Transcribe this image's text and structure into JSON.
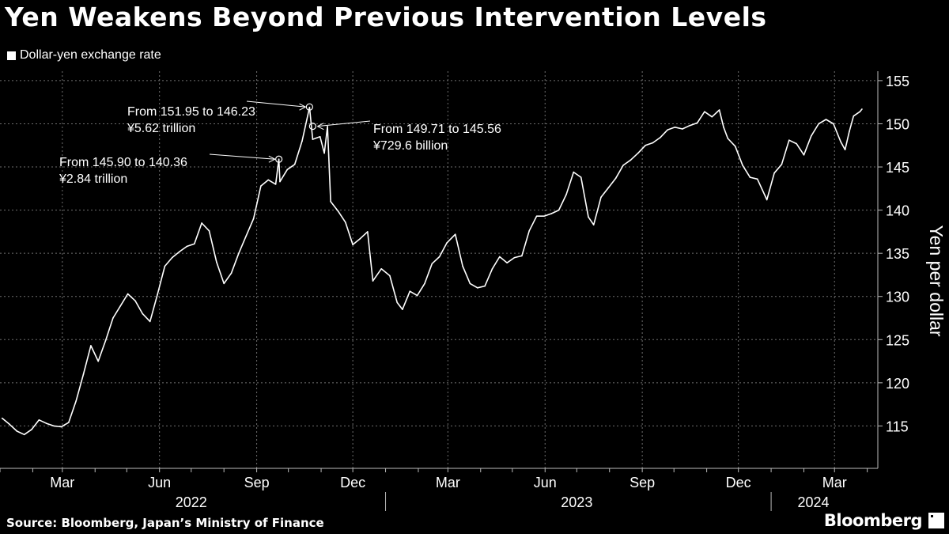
{
  "title": "Yen Weakens Beyond Previous Intervention Levels",
  "legend_label": "Dollar-yen exchange rate",
  "source": "Source: Bloomberg, Japan’s Ministry of Finance",
  "logo_text": "Bloomberg",
  "colors": {
    "background": "#000000",
    "line": "#ffffff",
    "grid": "#6f6f6f"
  },
  "chart_data": {
    "type": "line",
    "title": "Yen Weakens Beyond Previous Intervention Levels",
    "ylabel": "Yen per dollar",
    "ylim": [
      110,
      156
    ],
    "yticks": [
      115,
      120,
      125,
      130,
      135,
      140,
      145,
      150,
      155
    ],
    "grid": true,
    "legend_position": "top-left",
    "x_month_ticks": [
      {
        "date": "2022-03-01",
        "label": "Mar"
      },
      {
        "date": "2022-06-01",
        "label": "Jun"
      },
      {
        "date": "2022-09-01",
        "label": "Sep"
      },
      {
        "date": "2022-12-01",
        "label": "Dec"
      },
      {
        "date": "2023-03-01",
        "label": "Mar"
      },
      {
        "date": "2023-06-01",
        "label": "Jun"
      },
      {
        "date": "2023-09-01",
        "label": "Sep"
      },
      {
        "date": "2023-12-01",
        "label": "Dec"
      },
      {
        "date": "2024-03-01",
        "label": "Mar"
      }
    ],
    "x_year_labels": [
      {
        "date": "2022-07-01",
        "label": "2022"
      },
      {
        "date": "2023-07-01",
        "label": "2023"
      },
      {
        "date": "2024-02-10",
        "label": "2024"
      }
    ],
    "year_separators": [
      "2023-01-01",
      "2024-01-01"
    ],
    "series": [
      {
        "name": "Dollar-yen exchange rate",
        "points": [
          [
            "2022-01-03",
            115.9
          ],
          [
            "2022-01-10",
            115.2
          ],
          [
            "2022-01-17",
            114.4
          ],
          [
            "2022-01-24",
            114.0
          ],
          [
            "2022-01-31",
            114.6
          ],
          [
            "2022-02-07",
            115.7
          ],
          [
            "2022-02-14",
            115.3
          ],
          [
            "2022-02-21",
            115.0
          ],
          [
            "2022-02-28",
            114.9
          ],
          [
            "2022-03-07",
            115.4
          ],
          [
            "2022-03-14",
            117.9
          ],
          [
            "2022-03-21",
            121.0
          ],
          [
            "2022-03-28",
            124.3
          ],
          [
            "2022-04-04",
            122.5
          ],
          [
            "2022-04-11",
            124.9
          ],
          [
            "2022-04-18",
            127.5
          ],
          [
            "2022-04-25",
            128.9
          ],
          [
            "2022-05-02",
            130.3
          ],
          [
            "2022-05-09",
            129.5
          ],
          [
            "2022-05-16",
            128.0
          ],
          [
            "2022-05-23",
            127.1
          ],
          [
            "2022-05-30",
            130.2
          ],
          [
            "2022-06-06",
            133.5
          ],
          [
            "2022-06-13",
            134.5
          ],
          [
            "2022-06-20",
            135.2
          ],
          [
            "2022-06-27",
            135.8
          ],
          [
            "2022-07-04",
            136.1
          ],
          [
            "2022-07-11",
            138.5
          ],
          [
            "2022-07-18",
            137.6
          ],
          [
            "2022-07-25",
            134.0
          ],
          [
            "2022-08-01",
            131.5
          ],
          [
            "2022-08-08",
            132.7
          ],
          [
            "2022-08-15",
            135.0
          ],
          [
            "2022-08-22",
            137.0
          ],
          [
            "2022-08-29",
            139.0
          ],
          [
            "2022-09-05",
            142.8
          ],
          [
            "2022-09-12",
            143.5
          ],
          [
            "2022-09-19",
            143.0
          ],
          [
            "2022-09-22",
            145.9
          ],
          [
            "2022-09-23",
            143.3
          ],
          [
            "2022-09-30",
            144.7
          ],
          [
            "2022-10-07",
            145.3
          ],
          [
            "2022-10-14",
            148.0
          ],
          [
            "2022-10-21",
            151.9
          ],
          [
            "2022-10-24",
            148.2
          ],
          [
            "2022-10-31",
            148.5
          ],
          [
            "2022-11-04",
            146.6
          ],
          [
            "2022-11-07",
            149.7
          ],
          [
            "2022-11-10",
            141.0
          ],
          [
            "2022-11-17",
            139.9
          ],
          [
            "2022-11-24",
            138.6
          ],
          [
            "2022-12-01",
            136.0
          ],
          [
            "2022-12-08",
            136.7
          ],
          [
            "2022-12-15",
            137.5
          ],
          [
            "2022-12-20",
            131.8
          ],
          [
            "2022-12-28",
            133.2
          ],
          [
            "2023-01-05",
            132.4
          ],
          [
            "2023-01-12",
            129.3
          ],
          [
            "2023-01-17",
            128.5
          ],
          [
            "2023-01-24",
            130.6
          ],
          [
            "2023-01-31",
            130.1
          ],
          [
            "2023-02-07",
            131.5
          ],
          [
            "2023-02-14",
            133.8
          ],
          [
            "2023-02-21",
            134.6
          ],
          [
            "2023-02-28",
            136.2
          ],
          [
            "2023-03-08",
            137.2
          ],
          [
            "2023-03-15",
            133.5
          ],
          [
            "2023-03-22",
            131.5
          ],
          [
            "2023-03-29",
            131.0
          ],
          [
            "2023-04-05",
            131.2
          ],
          [
            "2023-04-12",
            133.2
          ],
          [
            "2023-04-19",
            134.6
          ],
          [
            "2023-04-26",
            133.9
          ],
          [
            "2023-05-03",
            134.5
          ],
          [
            "2023-05-10",
            134.7
          ],
          [
            "2023-05-17",
            137.6
          ],
          [
            "2023-05-24",
            139.3
          ],
          [
            "2023-05-31",
            139.3
          ],
          [
            "2023-06-07",
            139.6
          ],
          [
            "2023-06-14",
            140.0
          ],
          [
            "2023-06-21",
            141.8
          ],
          [
            "2023-06-28",
            144.4
          ],
          [
            "2023-07-05",
            143.8
          ],
          [
            "2023-07-12",
            139.2
          ],
          [
            "2023-07-17",
            138.3
          ],
          [
            "2023-07-24",
            141.5
          ],
          [
            "2023-07-31",
            142.6
          ],
          [
            "2023-08-07",
            143.7
          ],
          [
            "2023-08-14",
            145.2
          ],
          [
            "2023-08-21",
            145.8
          ],
          [
            "2023-08-28",
            146.6
          ],
          [
            "2023-09-04",
            147.5
          ],
          [
            "2023-09-11",
            147.8
          ],
          [
            "2023-09-18",
            148.4
          ],
          [
            "2023-09-25",
            149.3
          ],
          [
            "2023-10-02",
            149.6
          ],
          [
            "2023-10-09",
            149.4
          ],
          [
            "2023-10-16",
            149.8
          ],
          [
            "2023-10-23",
            150.1
          ],
          [
            "2023-10-30",
            151.4
          ],
          [
            "2023-11-06",
            150.8
          ],
          [
            "2023-11-13",
            151.6
          ],
          [
            "2023-11-17",
            149.6
          ],
          [
            "2023-11-21",
            148.3
          ],
          [
            "2023-11-28",
            147.4
          ],
          [
            "2023-12-05",
            145.2
          ],
          [
            "2023-12-12",
            143.8
          ],
          [
            "2023-12-19",
            143.6
          ],
          [
            "2023-12-28",
            141.2
          ],
          [
            "2024-01-04",
            144.3
          ],
          [
            "2024-01-11",
            145.3
          ],
          [
            "2024-01-18",
            148.1
          ],
          [
            "2024-01-25",
            147.7
          ],
          [
            "2024-02-01",
            146.4
          ],
          [
            "2024-02-08",
            148.6
          ],
          [
            "2024-02-15",
            150.0
          ],
          [
            "2024-02-22",
            150.5
          ],
          [
            "2024-02-29",
            150.0
          ],
          [
            "2024-03-07",
            147.9
          ],
          [
            "2024-03-11",
            147.0
          ],
          [
            "2024-03-15",
            149.1
          ],
          [
            "2024-03-19",
            150.9
          ],
          [
            "2024-03-25",
            151.4
          ],
          [
            "2024-03-27",
            151.7
          ]
        ]
      }
    ],
    "annotations": [
      {
        "date": "2022-09-22",
        "value": 145.9,
        "lines": [
          "From 145.90 to 140.36",
          "¥2.84 trillion"
        ]
      },
      {
        "date": "2022-10-21",
        "value": 151.95,
        "lines": [
          "From 151.95 to 146.23",
          "¥5.62 trillion"
        ]
      },
      {
        "date": "2022-10-24",
        "value": 149.71,
        "lines": [
          "From 149.71 to 145.56",
          "¥729.6 billion"
        ]
      }
    ]
  }
}
